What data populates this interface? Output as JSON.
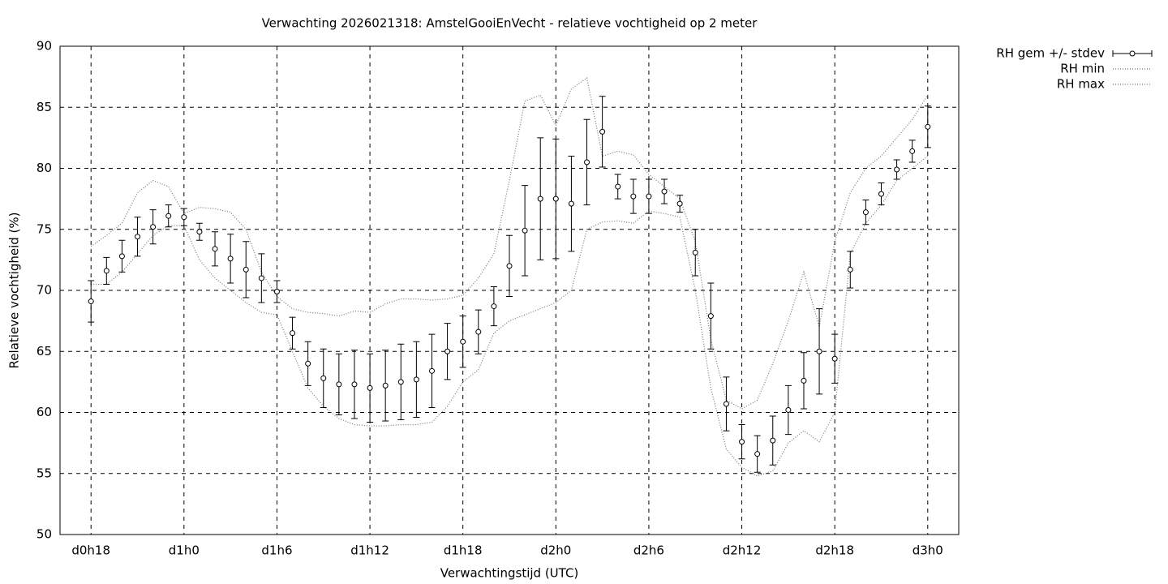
{
  "chart_data": {
    "type": "errorbar",
    "title": "Verwachting 2026021318: AmstelGooiEnVecht - relatieve vochtigheid op 2 meter",
    "x_label": "Verwachtingstijd (UTC)",
    "y_label": "Relatieve vochtigheid (%)",
    "x": [
      18,
      19,
      20,
      21,
      22,
      23,
      24,
      25,
      26,
      27,
      28,
      29,
      30,
      31,
      32,
      33,
      34,
      35,
      36,
      37,
      38,
      39,
      40,
      41,
      42,
      43,
      44,
      45,
      46,
      47,
      48,
      49,
      50,
      51,
      52,
      53,
      54,
      55,
      56,
      57,
      58,
      59,
      60,
      61,
      62,
      63,
      64,
      65,
      66,
      67,
      68,
      69,
      70,
      71,
      72
    ],
    "series": [
      {
        "name": "RH gem +/- stdev",
        "color": "#000000",
        "values": [
          69.1,
          71.6,
          72.8,
          74.4,
          75.2,
          76.1,
          76.0,
          74.8,
          73.4,
          72.6,
          71.7,
          71.0,
          69.9,
          66.5,
          64.0,
          62.8,
          62.3,
          62.3,
          62.0,
          62.2,
          62.5,
          62.7,
          63.4,
          65.0,
          65.8,
          66.6,
          68.7,
          72.0,
          74.9,
          77.5,
          77.5,
          77.1,
          80.5,
          83.0,
          78.5,
          77.7,
          77.7,
          78.1,
          77.1,
          73.1,
          67.9,
          60.7,
          57.6,
          56.6,
          57.7,
          60.2,
          62.6,
          65.0,
          64.4,
          71.7,
          76.4,
          77.9,
          79.9,
          81.4,
          83.4
        ],
        "errors": [
          1.7,
          1.1,
          1.3,
          1.6,
          1.4,
          0.9,
          0.7,
          0.7,
          1.4,
          2.0,
          2.3,
          2.0,
          0.9,
          1.3,
          1.8,
          2.4,
          2.5,
          2.8,
          2.8,
          2.9,
          3.1,
          3.1,
          3.0,
          2.3,
          2.1,
          1.8,
          1.6,
          2.5,
          3.7,
          5.0,
          4.9,
          3.9,
          3.5,
          2.9,
          1.0,
          1.4,
          1.4,
          1.0,
          0.7,
          1.9,
          2.7,
          2.2,
          1.4,
          1.5,
          2.0,
          2.0,
          2.3,
          3.5,
          2.0,
          1.5,
          1.0,
          0.9,
          0.8,
          0.9,
          1.7
        ]
      },
      {
        "name": "RH min",
        "color": "#777777",
        "values": [
          70.5,
          70.5,
          71.5,
          73,
          74.5,
          75.3,
          75.3,
          72.5,
          71,
          70,
          69,
          68.2,
          68,
          65,
          62,
          60.5,
          59.5,
          59,
          58.9,
          58.9,
          59,
          59,
          59.2,
          60.5,
          62.5,
          63.5,
          66.5,
          67.5,
          68,
          68.5,
          69,
          70,
          75,
          75.6,
          75.7,
          75.5,
          76.5,
          76.3,
          76,
          70,
          62,
          57,
          55.5,
          54.8,
          55.2,
          57.5,
          58.5,
          57.6,
          60,
          73,
          75.5,
          77,
          79,
          80,
          81
        ]
      },
      {
        "name": "RH max",
        "color": "#777777",
        "values": [
          73.6,
          74.5,
          75.5,
          78,
          79,
          78.5,
          76.3,
          76.8,
          76.7,
          76.4,
          75,
          71.5,
          69.5,
          68.5,
          68.2,
          68.1,
          67.9,
          68.3,
          68.2,
          68.9,
          69.3,
          69.3,
          69.2,
          69.3,
          69.6,
          71,
          73,
          79,
          85.5,
          86,
          83.5,
          86.5,
          87.4,
          81,
          81.4,
          81.1,
          79.5,
          78.5,
          77.5,
          74,
          66,
          61,
          60.3,
          61,
          64,
          67.5,
          71.5,
          67,
          74,
          78,
          80,
          81,
          82.5,
          84,
          86
        ]
      }
    ],
    "xlim": [
      16,
      74
    ],
    "xticks": [
      {
        "value": 18,
        "label": "d0h18"
      },
      {
        "value": 24,
        "label": "d1h0"
      },
      {
        "value": 30,
        "label": "d1h6"
      },
      {
        "value": 36,
        "label": "d1h12"
      },
      {
        "value": 42,
        "label": "d1h18"
      },
      {
        "value": 48,
        "label": "d2h0"
      },
      {
        "value": 54,
        "label": "d2h6"
      },
      {
        "value": 60,
        "label": "d2h12"
      },
      {
        "value": 66,
        "label": "d2h18"
      },
      {
        "value": 72,
        "label": "d3h0"
      }
    ],
    "ylim": [
      50,
      90
    ],
    "yticks": [
      50,
      55,
      60,
      65,
      70,
      75,
      80,
      85,
      90
    ],
    "grid": true,
    "legend": "outside-top-right"
  }
}
